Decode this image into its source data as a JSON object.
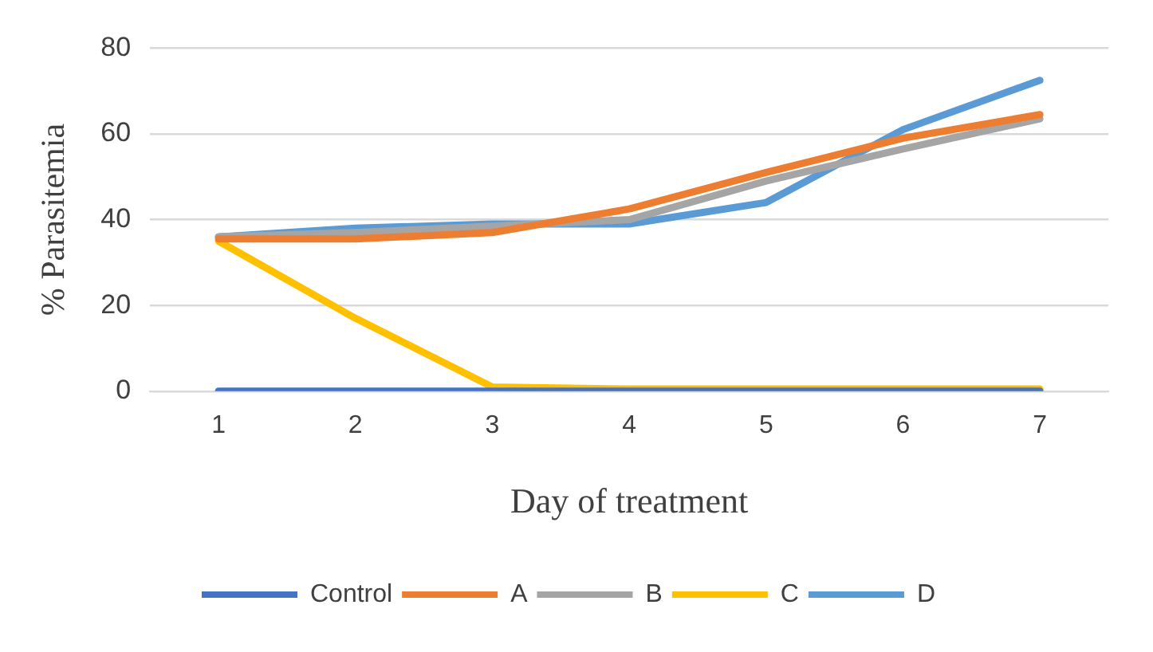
{
  "chart_data": {
    "type": "line",
    "xlabel": "Day of treatment",
    "ylabel": "% Parasitemia",
    "categories": [
      "1",
      "2",
      "3",
      "4",
      "5",
      "6",
      "7"
    ],
    "ylim": [
      0,
      80
    ],
    "yticks": [
      0,
      20,
      40,
      60,
      80
    ],
    "grid": "y",
    "legend": "bottom",
    "marker": "none",
    "series": [
      {
        "name": "Control",
        "color": "#4472c4",
        "values": [
          0,
          0,
          0,
          0,
          0,
          0,
          0
        ]
      },
      {
        "name": "A",
        "color": "#ed7d31",
        "values": [
          35.5,
          35.5,
          37,
          42.5,
          51,
          59,
          64.5
        ]
      },
      {
        "name": "B",
        "color": "#a5a5a5",
        "values": [
          36,
          37,
          38.5,
          40,
          49,
          56.5,
          63.5
        ]
      },
      {
        "name": "C",
        "color": "#ffc000",
        "values": [
          35,
          17,
          1,
          0.5,
          0.5,
          0.5,
          0.5
        ]
      },
      {
        "name": "D",
        "color": "#5b9bd5",
        "values": [
          36,
          38,
          39,
          39,
          44,
          61,
          72.5
        ]
      }
    ]
  }
}
